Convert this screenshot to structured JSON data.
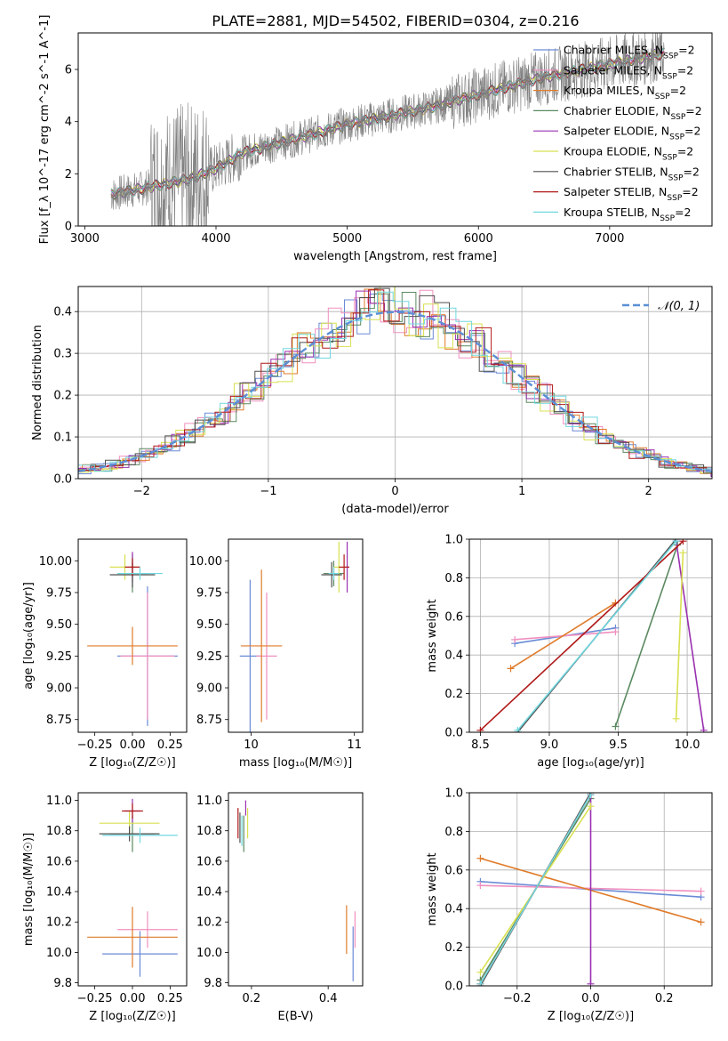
{
  "figure": {
    "title": "PLATE=2881, MJD=54502, FIBERID=0304, z=0.216"
  },
  "models": [
    {
      "name": "Chabrier MILES",
      "color": "#6a8bd6"
    },
    {
      "name": "Salpeter MILES",
      "color": "#f08fbf"
    },
    {
      "name": "Kroupa MILES",
      "color": "#e07b2a"
    },
    {
      "name": "Chabrier ELODIE",
      "color": "#5a8a60"
    },
    {
      "name": "Salpeter ELODIE",
      "color": "#9a30b0"
    },
    {
      "name": "Kroupa ELODIE",
      "color": "#d8e050"
    },
    {
      "name": "Chabrier STELIB",
      "color": "#505050"
    },
    {
      "name": "Salpeter STELIB",
      "color": "#b01818"
    },
    {
      "name": "Kroupa STELIB",
      "color": "#70d8e0"
    }
  ],
  "chart_data": [
    {
      "id": "spectrum",
      "type": "line",
      "title": "PLATE=2881, MJD=54502, FIBERID=0304, z=0.216",
      "xlabel": "wavelength [Angstrom, rest frame]",
      "ylabel": "Flux [f_λ 10^-17 erg cm^-2 s^-1 A^-1]",
      "xlim": [
        2950,
        7780
      ],
      "ylim": [
        0,
        7.4
      ],
      "xticks": [
        3000,
        4000,
        5000,
        6000,
        7000
      ],
      "yticks": [
        0,
        2,
        4,
        6
      ],
      "grid": false,
      "legend": "top-right",
      "legend_entries": [
        "Chabrier MILES, N_SSP=2",
        "Salpeter MILES, N_SSP=2",
        "Kroupa MILES, N_SSP=2",
        "Chabrier ELODIE, N_SSP=2",
        "Salpeter ELODIE, N_SSP=2",
        "Kroupa ELODIE, N_SSP=2",
        "Chabrier STELIB, N_SSP=2",
        "Salpeter STELIB, N_SSP=2",
        "Kroupa STELIB, N_SSP=2"
      ],
      "data_series": {
        "name": "data",
        "color": "#808080"
      },
      "continuum": {
        "x": [
          3200,
          3500,
          3800,
          4000,
          4200,
          4500,
          4800,
          5000,
          5300,
          5600,
          5900,
          6200,
          6500,
          6800,
          7100,
          7400
        ],
        "y": [
          1.2,
          1.5,
          1.8,
          2.2,
          2.8,
          3.2,
          3.6,
          3.9,
          4.2,
          4.5,
          4.9,
          5.3,
          5.7,
          6.0,
          6.3,
          6.6
        ]
      }
    },
    {
      "id": "residuals",
      "type": "step",
      "xlabel": "(data-model)/error",
      "ylabel": "Normed distribution",
      "xlim": [
        -2.5,
        2.5
      ],
      "ylim": [
        0,
        0.46
      ],
      "xticks": [
        -2,
        -1,
        0,
        1,
        2
      ],
      "yticks": [
        0.0,
        0.1,
        0.2,
        0.3,
        0.4
      ],
      "grid": true,
      "legend": "top-right",
      "reference_curve": {
        "name": "N(0, 1)",
        "color": "#5b8fd6"
      }
    },
    {
      "id": "age-vs-z",
      "type": "errorbar",
      "xlabel": "Z [log10(Z/Z☉)]",
      "ylabel": "age  [log10(age/yr)]",
      "xlim": [
        -0.36,
        0.36
      ],
      "ylim": [
        8.65,
        10.17
      ],
      "xticks": [
        -0.25,
        0.0,
        0.25
      ],
      "yticks": [
        8.75,
        9.0,
        9.25,
        9.5,
        9.75,
        10.0
      ],
      "points": [
        {
          "model": 0,
          "x": 0.1,
          "y": 9.25,
          "xerr": 0.2,
          "yerr": 0.55
        },
        {
          "model": 1,
          "x": 0.1,
          "y": 9.25,
          "xerr": 0.18,
          "yerr": 0.5
        },
        {
          "model": 2,
          "x": 0.0,
          "y": 9.33,
          "xerr": 0.3,
          "yerr": 0.15
        },
        {
          "model": 3,
          "x": 0.0,
          "y": 9.9,
          "xerr": 0.1,
          "yerr": 0.15
        },
        {
          "model": 4,
          "x": 0.0,
          "y": 9.95,
          "xerr": 0.02,
          "yerr": 0.12
        },
        {
          "model": 5,
          "x": -0.05,
          "y": 9.95,
          "xerr": 0.1,
          "yerr": 0.1
        },
        {
          "model": 6,
          "x": 0.0,
          "y": 9.89,
          "xerr": 0.15,
          "yerr": 0.1
        },
        {
          "model": 7,
          "x": 0.0,
          "y": 9.95,
          "xerr": 0.05,
          "yerr": 0.07
        },
        {
          "model": 8,
          "x": 0.05,
          "y": 9.9,
          "xerr": 0.15,
          "yerr": 0.05
        }
      ]
    },
    {
      "id": "age-vs-mass",
      "type": "errorbar",
      "xlabel": "mass [log10(M/M☉)]",
      "ylabel": "",
      "xlim": [
        9.78,
        11.08
      ],
      "ylim": [
        8.65,
        10.17
      ],
      "xticks": [
        10,
        11
      ],
      "yticks": [
        8.75,
        9.0,
        9.25,
        9.5,
        9.75,
        10.0
      ],
      "points": [
        {
          "model": 0,
          "x": 9.99,
          "y": 9.25,
          "xerr": 0.1,
          "yerr": 0.6
        },
        {
          "model": 1,
          "x": 10.15,
          "y": 9.25,
          "xerr": 0.1,
          "yerr": 0.5
        },
        {
          "model": 2,
          "x": 10.1,
          "y": 9.33,
          "xerr": 0.2,
          "yerr": 0.6
        },
        {
          "model": 3,
          "x": 10.8,
          "y": 9.9,
          "xerr": 0.1,
          "yerr": 0.1
        },
        {
          "model": 4,
          "x": 10.93,
          "y": 9.95,
          "xerr": 0.02,
          "yerr": 0.2
        },
        {
          "model": 5,
          "x": 10.85,
          "y": 9.95,
          "xerr": 0.05,
          "yerr": 0.2
        },
        {
          "model": 6,
          "x": 10.78,
          "y": 9.89,
          "xerr": 0.1,
          "yerr": 0.1
        },
        {
          "model": 7,
          "x": 10.9,
          "y": 9.95,
          "xerr": 0.05,
          "yerr": 0.1
        },
        {
          "model": 8,
          "x": 10.8,
          "y": 9.9,
          "xerr": 0.05,
          "yerr": 0.05
        }
      ]
    },
    {
      "id": "age-mass-weight",
      "type": "line",
      "xlabel": "age  [log10(age/yr)]",
      "ylabel": "mass weight",
      "xlim": [
        8.42,
        10.18
      ],
      "ylim": [
        0,
        1
      ],
      "xticks": [
        8.5,
        9.0,
        9.5,
        10.0
      ],
      "yticks": [
        0.0,
        0.2,
        0.4,
        0.6,
        0.8,
        1.0
      ],
      "grid": true,
      "lines": [
        {
          "model": 0,
          "x": [
            8.75,
            9.48
          ],
          "y": [
            0.46,
            0.54
          ]
        },
        {
          "model": 1,
          "x": [
            8.75,
            9.48
          ],
          "y": [
            0.48,
            0.52
          ]
        },
        {
          "model": 2,
          "x": [
            8.72,
            9.48
          ],
          "y": [
            0.33,
            0.67
          ]
        },
        {
          "model": 3,
          "x": [
            9.48,
            9.93
          ],
          "y": [
            0.03,
            0.97
          ]
        },
        {
          "model": 4,
          "x": [
            9.92,
            10.12
          ],
          "y": [
            0.99,
            0.01
          ]
        },
        {
          "model": 5,
          "x": [
            9.92,
            9.97
          ],
          "y": [
            0.07,
            0.93
          ]
        },
        {
          "model": 6,
          "x": [
            8.77,
            9.92
          ],
          "y": [
            0.0,
            1.0
          ]
        },
        {
          "model": 7,
          "x": [
            8.5,
            9.97
          ],
          "y": [
            0.01,
            0.99
          ]
        },
        {
          "model": 8,
          "x": [
            8.77,
            9.92
          ],
          "y": [
            0.01,
            0.99
          ]
        }
      ]
    },
    {
      "id": "mass-vs-z",
      "type": "errorbar",
      "xlabel": "Z [log10(Z/Z☉)]",
      "ylabel": "mass [log10(M/M☉)]",
      "xlim": [
        -0.36,
        0.36
      ],
      "ylim": [
        9.78,
        11.05
      ],
      "xticks": [
        -0.25,
        0.0,
        0.25
      ],
      "yticks": [
        9.8,
        10.0,
        10.2,
        10.4,
        10.6,
        10.8,
        11.0
      ],
      "points": [
        {
          "model": 0,
          "x": 0.05,
          "y": 9.99,
          "xerr": 0.25,
          "yerr": 0.15
        },
        {
          "model": 1,
          "x": 0.1,
          "y": 10.15,
          "xerr": 0.2,
          "yerr": 0.12
        },
        {
          "model": 2,
          "x": 0.0,
          "y": 10.1,
          "xerr": 0.3,
          "yerr": 0.2
        },
        {
          "model": 3,
          "x": 0.0,
          "y": 10.78,
          "xerr": 0.15,
          "yerr": 0.12
        },
        {
          "model": 4,
          "x": 0.0,
          "y": 10.93,
          "xerr": 0.05,
          "yerr": 0.08
        },
        {
          "model": 5,
          "x": -0.02,
          "y": 10.85,
          "xerr": 0.2,
          "yerr": 0.08
        },
        {
          "model": 6,
          "x": -0.02,
          "y": 10.78,
          "xerr": 0.2,
          "yerr": 0.05
        },
        {
          "model": 7,
          "x": 0.0,
          "y": 10.93,
          "xerr": 0.07,
          "yerr": 0.05
        },
        {
          "model": 8,
          "x": 0.05,
          "y": 10.77,
          "xerr": 0.25,
          "yerr": 0.05
        }
      ]
    },
    {
      "id": "mass-vs-ebv",
      "type": "errorbar",
      "xlabel": "E(B-V)",
      "ylabel": "",
      "xlim": [
        0.14,
        0.49
      ],
      "ylim": [
        9.78,
        11.05
      ],
      "xticks": [
        0.2,
        0.4
      ],
      "yticks": [
        9.8,
        10.0,
        10.2,
        10.4,
        10.6,
        10.8,
        11.0
      ],
      "points": [
        {
          "model": 0,
          "x": 0.465,
          "y": 9.99,
          "xerr": 0.0,
          "yerr": 0.18
        },
        {
          "model": 1,
          "x": 0.47,
          "y": 10.15,
          "xerr": 0.0,
          "yerr": 0.12
        },
        {
          "model": 2,
          "x": 0.448,
          "y": 10.15,
          "xerr": 0.0,
          "yerr": 0.16
        },
        {
          "model": 3,
          "x": 0.18,
          "y": 10.78,
          "xerr": 0.0,
          "yerr": 0.12
        },
        {
          "model": 4,
          "x": 0.185,
          "y": 10.95,
          "xerr": 0.0,
          "yerr": 0.05
        },
        {
          "model": 5,
          "x": 0.19,
          "y": 10.85,
          "xerr": 0.0,
          "yerr": 0.1
        },
        {
          "model": 6,
          "x": 0.17,
          "y": 10.82,
          "xerr": 0.0,
          "yerr": 0.1
        },
        {
          "model": 7,
          "x": 0.165,
          "y": 10.85,
          "xerr": 0.0,
          "yerr": 0.1
        },
        {
          "model": 8,
          "x": 0.175,
          "y": 10.8,
          "xerr": 0.0,
          "yerr": 0.1
        }
      ]
    },
    {
      "id": "z-mass-weight",
      "type": "line",
      "xlabel": "Z [log10(Z/Z☉)]",
      "ylabel": "mass weight",
      "xlim": [
        -0.33,
        0.33
      ],
      "ylim": [
        0,
        1
      ],
      "xticks": [
        -0.2,
        0.0,
        0.2
      ],
      "yticks": [
        0.0,
        0.2,
        0.4,
        0.6,
        0.8,
        1.0
      ],
      "grid": true,
      "lines": [
        {
          "model": 0,
          "x": [
            -0.3,
            0.3
          ],
          "y": [
            0.54,
            0.46
          ]
        },
        {
          "model": 1,
          "x": [
            -0.3,
            0.3
          ],
          "y": [
            0.52,
            0.49
          ]
        },
        {
          "model": 2,
          "x": [
            -0.3,
            0.3
          ],
          "y": [
            0.66,
            0.33
          ]
        },
        {
          "model": 3,
          "x": [
            -0.3,
            0.0
          ],
          "y": [
            0.03,
            0.97
          ]
        },
        {
          "model": 4,
          "x": [
            0.0,
            0.0
          ],
          "y": [
            0.01,
            0.99
          ]
        },
        {
          "model": 5,
          "x": [
            -0.3,
            0.0
          ],
          "y": [
            0.07,
            0.93
          ]
        },
        {
          "model": 6,
          "x": [
            -0.3,
            0.0
          ],
          "y": [
            0.0,
            1.0
          ]
        },
        {
          "model": 7,
          "x": [
            -0.3,
            0.0
          ],
          "y": [
            0.01,
            0.99
          ]
        },
        {
          "model": 8,
          "x": [
            -0.3,
            0.0
          ],
          "y": [
            0.01,
            0.99
          ]
        }
      ]
    }
  ]
}
